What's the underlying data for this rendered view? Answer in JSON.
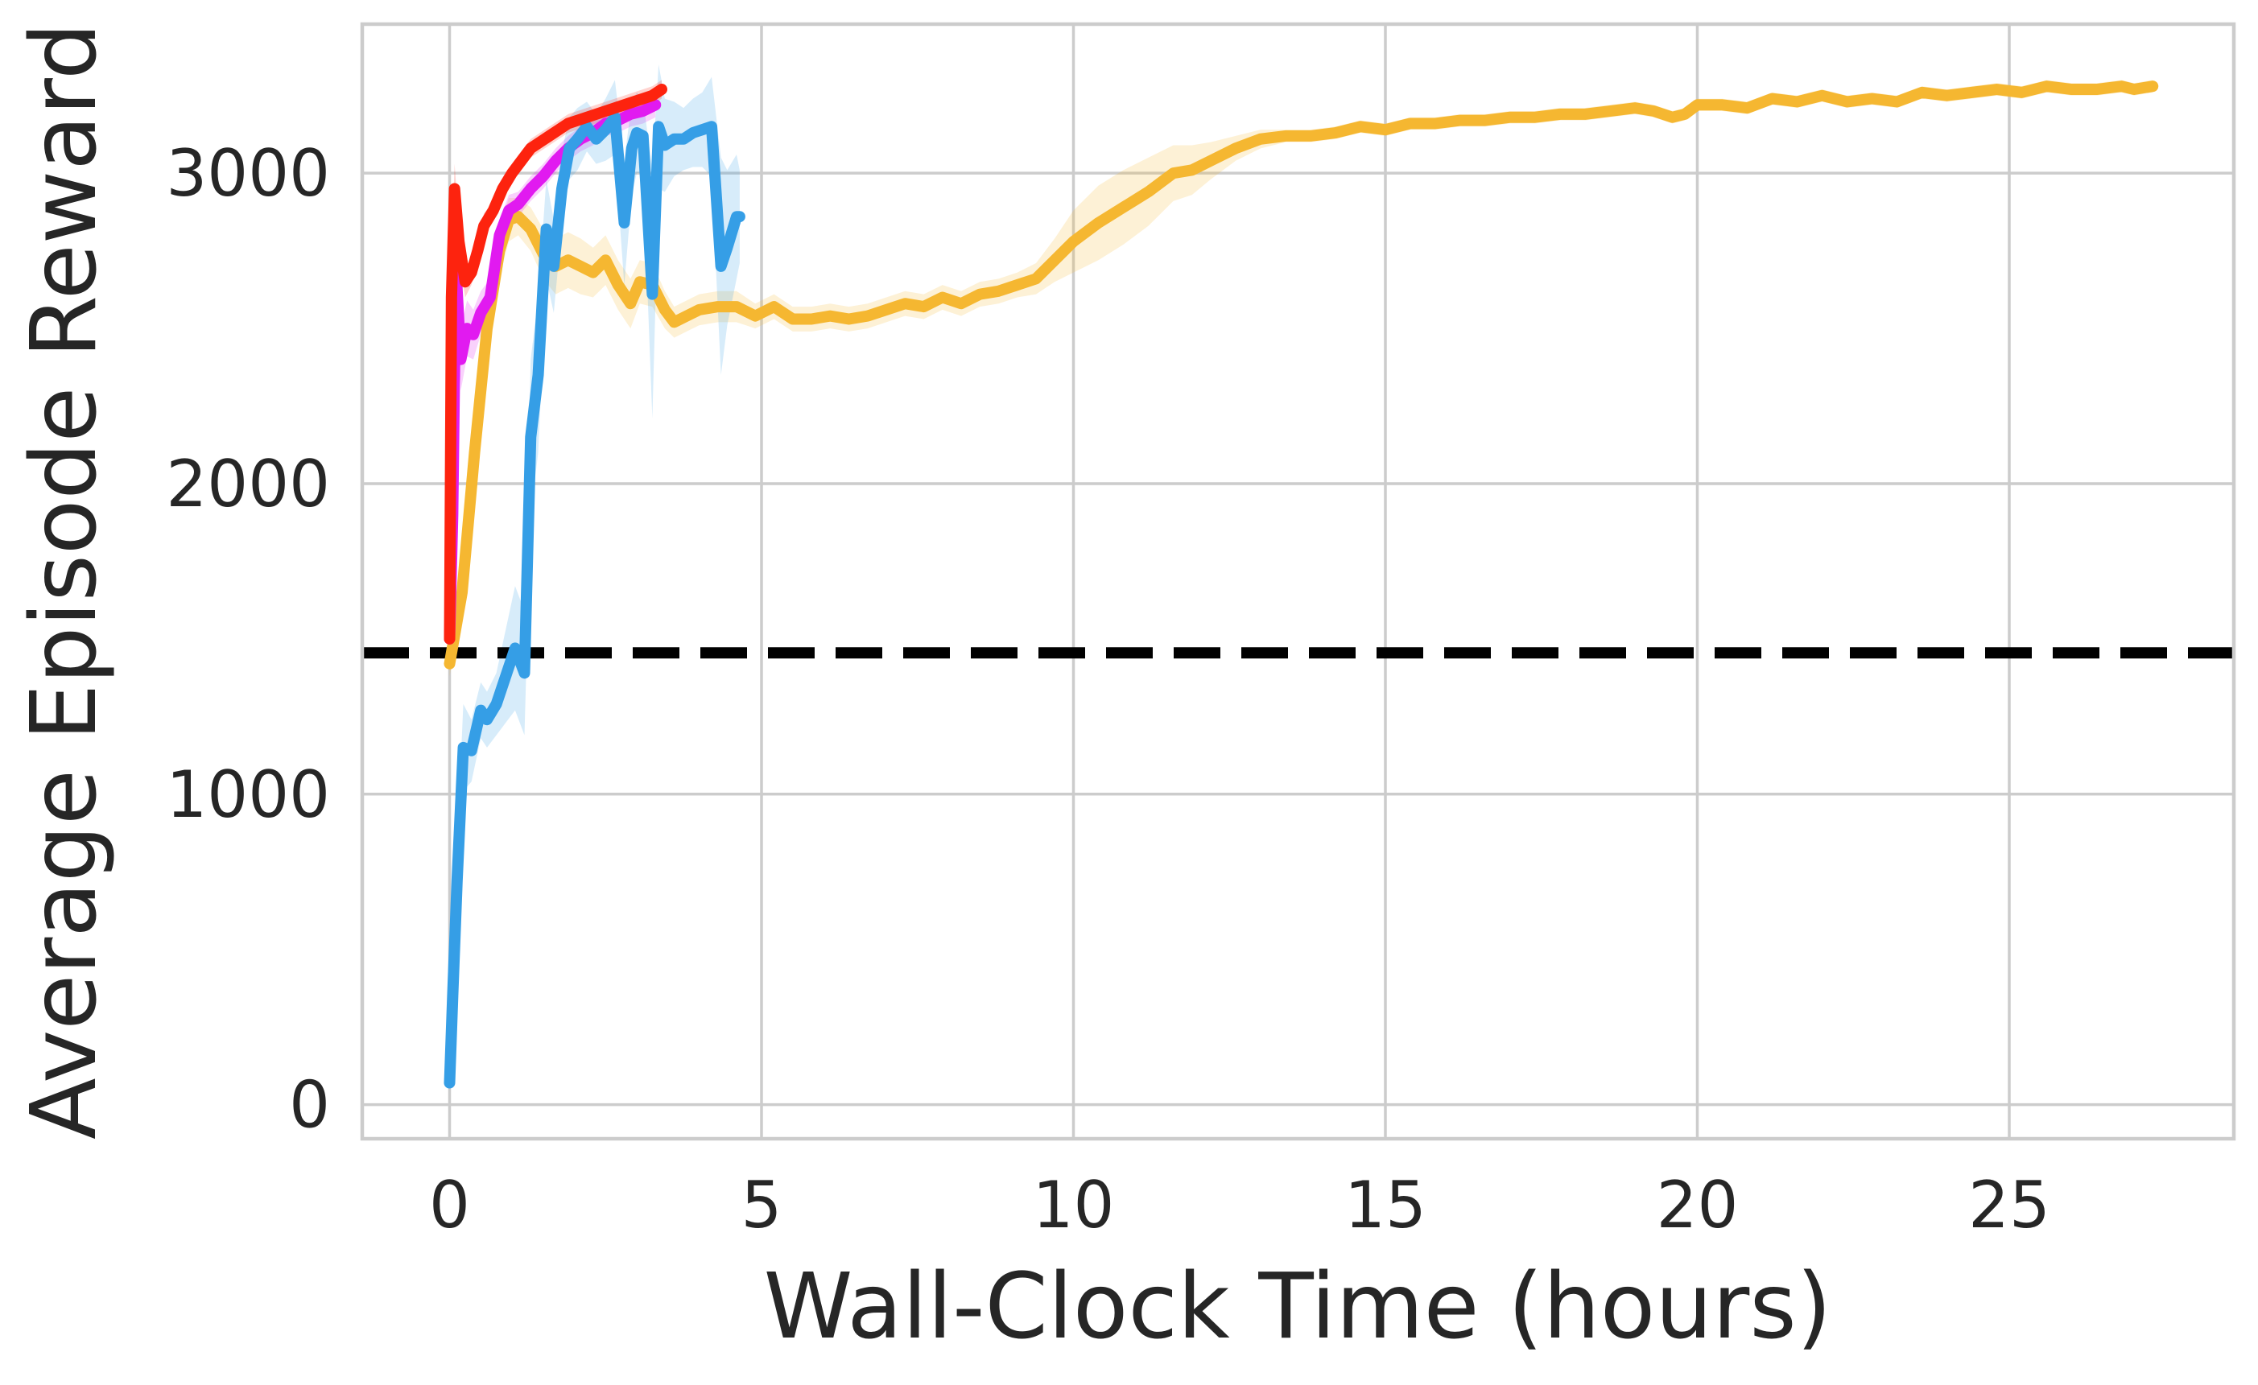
{
  "chart_data": {
    "type": "line",
    "title": "",
    "xlabel": "Wall-Clock Time (hours)",
    "ylabel": "Average Episode Reward",
    "xlim": [
      -1.4,
      28.6
    ],
    "ylim": [
      -110,
      3480
    ],
    "xticks": [
      0,
      5,
      10,
      15,
      20,
      25
    ],
    "yticks": [
      0,
      1000,
      2000,
      3000
    ],
    "grid": true,
    "legend": "none",
    "reference_line": {
      "y": 1455,
      "style": "dashed",
      "color": "#000000"
    },
    "series": [
      {
        "color": "#f5b731",
        "x": [
          0,
          0.2,
          0.4,
          0.6,
          0.8,
          0.95,
          1.1,
          1.3,
          1.5,
          1.7,
          1.9,
          2.1,
          2.3,
          2.5,
          2.7,
          2.9,
          3.05,
          3.25,
          3.45,
          3.6,
          3.8,
          4.0,
          4.3,
          4.6,
          4.9,
          5.2,
          5.5,
          5.8,
          6.1,
          6.4,
          6.7,
          7.0,
          7.3,
          7.6,
          7.9,
          8.2,
          8.5,
          8.8,
          9.1,
          9.4,
          9.7,
          10.0,
          10.4,
          10.8,
          11.2,
          11.6,
          11.9,
          12.2,
          12.6,
          13.0,
          13.4,
          13.8,
          14.2,
          14.6,
          15.0,
          15.4,
          15.8,
          16.2,
          16.6,
          17.0,
          17.4,
          17.8,
          18.2,
          18.6,
          19.0,
          19.3,
          19.6,
          19.8,
          20.0,
          20.4,
          20.8,
          21.2,
          21.6,
          22.0,
          22.4,
          22.8,
          23.2,
          23.6,
          24.0,
          24.4,
          24.8,
          25.2,
          25.6,
          26.0,
          26.4,
          26.8,
          27.0,
          27.3
        ],
        "y": [
          1420,
          1650,
          2100,
          2500,
          2750,
          2850,
          2860,
          2820,
          2740,
          2700,
          2720,
          2700,
          2680,
          2720,
          2640,
          2580,
          2650,
          2640,
          2560,
          2520,
          2540,
          2560,
          2570,
          2570,
          2540,
          2570,
          2530,
          2530,
          2540,
          2530,
          2540,
          2560,
          2580,
          2570,
          2600,
          2580,
          2610,
          2620,
          2640,
          2660,
          2720,
          2780,
          2840,
          2890,
          2940,
          3000,
          3010,
          3040,
          3080,
          3110,
          3120,
          3120,
          3130,
          3150,
          3140,
          3160,
          3160,
          3170,
          3170,
          3180,
          3180,
          3190,
          3190,
          3200,
          3210,
          3200,
          3180,
          3190,
          3220,
          3220,
          3210,
          3240,
          3230,
          3250,
          3230,
          3240,
          3230,
          3260,
          3250,
          3260,
          3270,
          3260,
          3280,
          3270,
          3270,
          3280,
          3270,
          3280
        ],
        "band": [
          40,
          60,
          80,
          90,
          80,
          70,
          60,
          70,
          80,
          90,
          90,
          90,
          80,
          80,
          80,
          80,
          70,
          70,
          60,
          50,
          50,
          50,
          50,
          50,
          40,
          40,
          40,
          40,
          40,
          40,
          40,
          40,
          40,
          40,
          40,
          40,
          40,
          40,
          40,
          50,
          70,
          100,
          120,
          120,
          110,
          90,
          80,
          60,
          40,
          30,
          20,
          20,
          20,
          20,
          20,
          20,
          20,
          20,
          20,
          20,
          20,
          20,
          20,
          20,
          20,
          20,
          20,
          20,
          20,
          20,
          20,
          20,
          20,
          20,
          20,
          20,
          20,
          20,
          20,
          20,
          20,
          20,
          20,
          20,
          20,
          20,
          20,
          20
        ]
      },
      {
        "color": "#e11af0",
        "x": [
          0,
          0.05,
          0.1,
          0.18,
          0.28,
          0.38,
          0.5,
          0.65,
          0.8,
          0.95,
          1.1,
          1.3,
          1.5,
          1.7,
          1.9,
          2.1,
          2.3,
          2.5,
          2.7,
          2.9,
          3.1,
          3.3
        ],
        "y": [
          1500,
          1900,
          2700,
          2400,
          2500,
          2480,
          2550,
          2600,
          2800,
          2880,
          2900,
          2950,
          2990,
          3040,
          3080,
          3110,
          3130,
          3160,
          3170,
          3190,
          3200,
          3220
        ],
        "band": [
          60,
          80,
          100,
          100,
          90,
          80,
          70,
          60,
          50,
          50,
          40,
          40,
          40,
          40,
          40,
          40,
          40,
          40,
          40,
          40,
          40,
          40
        ]
      },
      {
        "color": "#359ee6",
        "x": [
          0,
          0.05,
          0.12,
          0.22,
          0.35,
          0.5,
          0.6,
          0.75,
          0.9,
          1.05,
          1.2,
          1.3,
          1.42,
          1.55,
          1.67,
          1.8,
          1.92,
          2.05,
          2.2,
          2.35,
          2.5,
          2.65,
          2.8,
          2.92,
          3.0,
          3.1,
          3.25,
          3.35,
          3.45,
          3.6,
          3.75,
          3.9,
          4.05,
          4.2,
          4.35,
          4.45,
          4.6,
          4.65
        ],
        "y": [
          70,
          350,
          720,
          1150,
          1140,
          1270,
          1240,
          1290,
          1380,
          1470,
          1390,
          2150,
          2350,
          2820,
          2700,
          2950,
          3080,
          3110,
          3150,
          3110,
          3140,
          3180,
          2840,
          3080,
          3130,
          3120,
          2610,
          3150,
          3090,
          3110,
          3110,
          3130,
          3140,
          3150,
          2700,
          2760,
          2860,
          2860
        ],
        "band": [
          30,
          80,
          120,
          140,
          100,
          90,
          90,
          100,
          150,
          200,
          200,
          250,
          250,
          160,
          150,
          120,
          100,
          100,
          80,
          80,
          100,
          120,
          200,
          150,
          130,
          120,
          400,
          200,
          150,
          120,
          100,
          110,
          120,
          160,
          350,
          250,
          200,
          150
        ]
      },
      {
        "color": "#fd230e",
        "x": [
          0,
          0.03,
          0.08,
          0.15,
          0.25,
          0.35,
          0.45,
          0.55,
          0.7,
          0.85,
          1.0,
          1.15,
          1.3,
          1.45,
          1.6,
          1.75,
          1.9,
          2.05,
          2.2,
          2.35,
          2.5,
          2.65,
          2.8,
          2.95,
          3.1,
          3.25,
          3.4
        ],
        "y": [
          1500,
          2600,
          2950,
          2780,
          2650,
          2680,
          2750,
          2830,
          2880,
          2950,
          3000,
          3040,
          3080,
          3100,
          3120,
          3140,
          3160,
          3170,
          3180,
          3190,
          3200,
          3210,
          3220,
          3230,
          3240,
          3250,
          3270
        ],
        "band": [
          60,
          80,
          80,
          60,
          50,
          40,
          40,
          40,
          30,
          30,
          30,
          30,
          30,
          30,
          30,
          30,
          30,
          30,
          30,
          30,
          30,
          30,
          30,
          30,
          30,
          30,
          30
        ]
      }
    ]
  }
}
